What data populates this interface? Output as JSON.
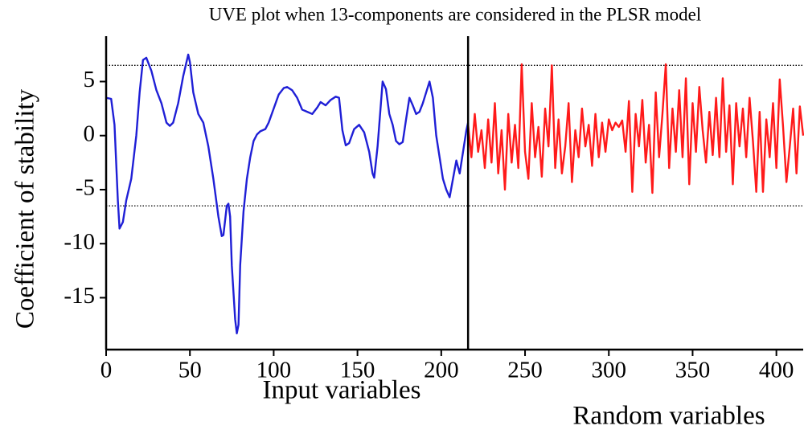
{
  "chart_data": {
    "type": "line",
    "title": "UVE plot when 13-components are considered in the PLSR model",
    "x_label": "Input variables",
    "x_label_2": "Random variables",
    "y_label": "Coefficient of stability",
    "xlim": [
      0,
      416
    ],
    "ylim": [
      -19.8,
      9.2
    ],
    "xticks": [
      0,
      50,
      100,
      150,
      200,
      250,
      300,
      350,
      400
    ],
    "yticks": [
      -15,
      -10,
      -5,
      0,
      5
    ],
    "thresholds": [
      6.5,
      -6.5
    ],
    "divider_x": 216,
    "series": [
      {
        "color": "#1f1fd6",
        "x": [
          0,
          3,
          5,
          7,
          8,
          10,
          12,
          15,
          18,
          20,
          22,
          24,
          27,
          30,
          33,
          36,
          38,
          40,
          43,
          46,
          49,
          50,
          52,
          55,
          58,
          61,
          64,
          67,
          69,
          70,
          72,
          73,
          74,
          75,
          77,
          78,
          79,
          80,
          82,
          84,
          86,
          88,
          90,
          92,
          95,
          97,
          100,
          103,
          106,
          108,
          111,
          114,
          117,
          120,
          123,
          126,
          128,
          131,
          134,
          137,
          139,
          141,
          143,
          145,
          148,
          151,
          154,
          157,
          159,
          160,
          162,
          164,
          165,
          167,
          169,
          171,
          173,
          175,
          177,
          179,
          181,
          183,
          185,
          187,
          189,
          191,
          193,
          195,
          197,
          199,
          201,
          203,
          205,
          207,
          209,
          211,
          213,
          215,
          216
        ],
        "values": [
          3.5,
          3.4,
          1,
          -6,
          -8.6,
          -8,
          -6,
          -4,
          0,
          4,
          7,
          7.2,
          6,
          4.2,
          3,
          1.2,
          0.9,
          1.2,
          3,
          5.5,
          7.5,
          6.8,
          4,
          2,
          1.2,
          -1,
          -4,
          -7.5,
          -9.3,
          -9.2,
          -6.5,
          -6.3,
          -7.5,
          -12,
          -17,
          -18.3,
          -17.5,
          -12,
          -7,
          -4,
          -2,
          -0.5,
          0.1,
          0.4,
          0.6,
          1.2,
          2.5,
          3.8,
          4.4,
          4.5,
          4.2,
          3.5,
          2.4,
          2.2,
          2,
          2.6,
          3.1,
          2.8,
          3.3,
          3.6,
          3.5,
          0.5,
          -0.9,
          -0.7,
          0.6,
          1,
          0.3,
          -1.5,
          -3.5,
          -3.9,
          -1,
          3,
          5,
          4.3,
          2,
          1,
          -0.5,
          -0.8,
          -0.6,
          1.5,
          3.5,
          2.8,
          2,
          2.2,
          3,
          4,
          5,
          3.5,
          0,
          -2,
          -4,
          -5,
          -5.7,
          -4,
          -2.3,
          -3.5,
          -1.5,
          0.5,
          1.2
        ]
      },
      {
        "color": "#ff1a1a",
        "x": [
          216,
          218,
          220,
          222,
          224,
          226,
          228,
          230,
          232,
          234,
          236,
          238,
          240,
          242,
          244,
          246,
          248,
          250,
          252,
          254,
          256,
          258,
          260,
          262,
          264,
          266,
          268,
          270,
          272,
          274,
          276,
          278,
          280,
          282,
          284,
          286,
          288,
          290,
          292,
          294,
          296,
          298,
          300,
          302,
          304,
          306,
          308,
          310,
          312,
          314,
          316,
          318,
          320,
          322,
          324,
          326,
          328,
          330,
          332,
          334,
          336,
          338,
          340,
          342,
          344,
          346,
          348,
          350,
          352,
          354,
          356,
          358,
          360,
          362,
          364,
          366,
          368,
          370,
          372,
          374,
          376,
          378,
          380,
          382,
          384,
          386,
          388,
          390,
          392,
          394,
          396,
          398,
          400,
          402,
          404,
          406,
          408,
          410,
          412,
          414,
          416
        ],
        "values": [
          1,
          -2,
          2,
          -1.5,
          0.5,
          -3,
          1.5,
          -2.5,
          3,
          -3.5,
          0.5,
          -5,
          2,
          -2.5,
          1,
          -3,
          6.6,
          -1.5,
          -4,
          3,
          -2,
          0.8,
          -3.8,
          2.5,
          -1,
          6.5,
          -3,
          1.5,
          -3.5,
          -1,
          3,
          -4.3,
          0.5,
          -2,
          2.5,
          -1,
          1,
          -2.8,
          2,
          -2,
          1.2,
          -1.5,
          1.5,
          0.5,
          1.2,
          0.8,
          1.4,
          -1.5,
          3.2,
          -5.2,
          2,
          -1,
          3.3,
          -2.5,
          1,
          -5.3,
          4,
          -2,
          2,
          6.6,
          -3,
          2.5,
          -1.5,
          4.2,
          -2,
          5.3,
          -4.5,
          3,
          -1.5,
          4.5,
          0.5,
          -2.5,
          2.2,
          -1.8,
          3.5,
          -2,
          5.3,
          -1.5,
          2.8,
          -4.5,
          3,
          -1,
          2.5,
          -2,
          3.5,
          -0.5,
          -5.2,
          2.2,
          -5.2,
          1.5,
          -2,
          3,
          -3,
          5.2,
          0.8,
          -4.3,
          -1,
          2.5,
          -3.5,
          2.7,
          0
        ]
      }
    ]
  }
}
